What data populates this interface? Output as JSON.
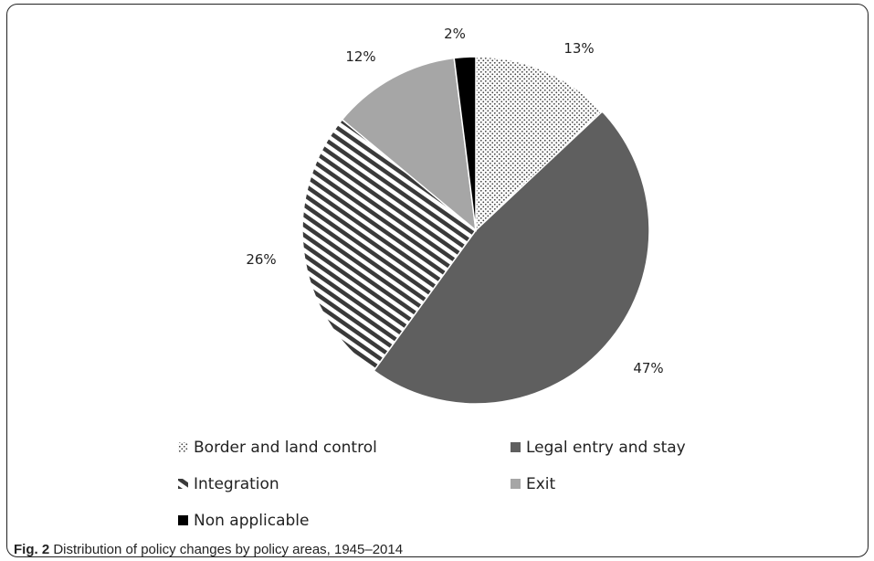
{
  "chart_data": {
    "type": "pie",
    "title": "",
    "start_angle": "12 o'clock, clockwise",
    "slices": [
      {
        "label": "Border and land control",
        "value": 13,
        "display": "13%",
        "pattern": "dots",
        "color": "#9a9a9a"
      },
      {
        "label": "Legal entry and stay",
        "value": 47,
        "display": "47%",
        "pattern": "solid",
        "color": "#5f5f5f"
      },
      {
        "label": "Integration",
        "value": 26,
        "display": "26%",
        "pattern": "stripes",
        "color": "#3c3c3c"
      },
      {
        "label": "Exit",
        "value": 12,
        "display": "12%",
        "pattern": "solid",
        "color": "#a6a6a6"
      },
      {
        "label": "Non applicable",
        "value": 2,
        "display": "2%",
        "pattern": "solid",
        "color": "#000000"
      }
    ],
    "legend_position": "bottom"
  },
  "caption": {
    "label": "Fig. 2",
    "text": " Distribution of policy changes by policy areas, 1945–2014"
  }
}
